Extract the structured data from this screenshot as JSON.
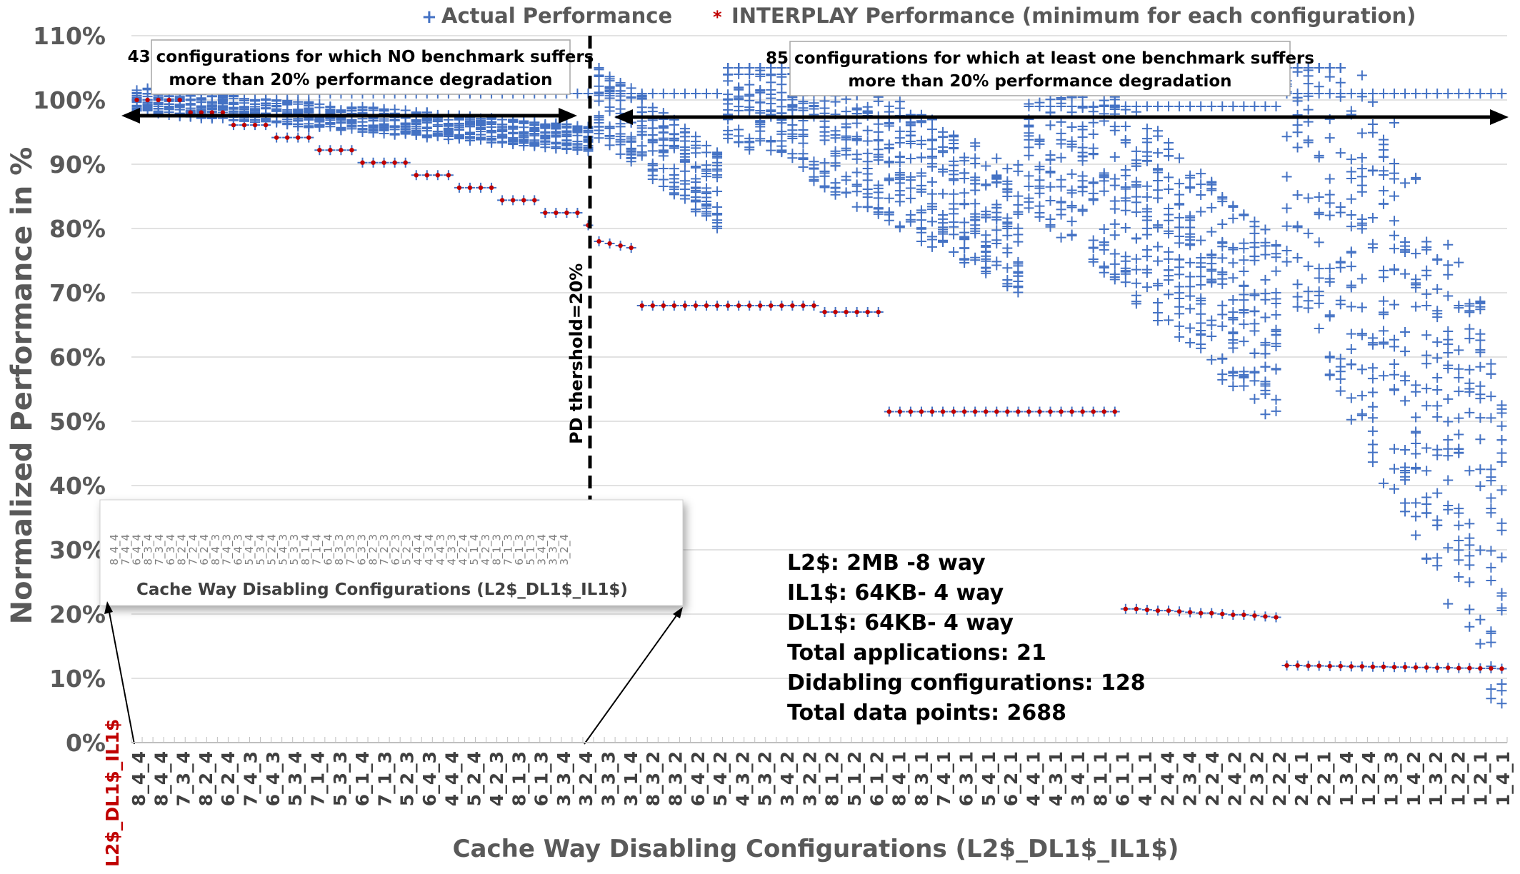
{
  "chart_data": {
    "type": "scatter",
    "xlabel": "Cache  Way Disabling Configurations (L2$_DL1$_IL1$)",
    "ylabel": "Normalized Performance in %",
    "ylim": [
      0,
      110
    ],
    "y_ticks": [
      "0%",
      "10%",
      "20%",
      "30%",
      "40%",
      "50%",
      "60%",
      "70%",
      "80%",
      "90%",
      "100%",
      "110%"
    ],
    "x_header_label": "L2$_DL1$_IL1$",
    "x_tick_labels": [
      "8_4_4",
      "8_4_4",
      "7_3_4",
      "8_2_4",
      "6_2_4",
      "7_4_3",
      "6_4_3",
      "5_3_4",
      "7_1_4",
      "5_3_3",
      "6_1_4",
      "7_1_3",
      "5_2_3",
      "6_4_3",
      "4_4_4",
      "5_2_4",
      "4_2_3",
      "8_1_3",
      "6_1_3",
      "3_3_4",
      "3_2_4",
      "3_3_3",
      "3_1_4",
      "8_3_2",
      "8_3_2",
      "6_4_2",
      "5_4_2",
      "4_3_2",
      "5_3_2",
      "3_4_2",
      "3_2_2",
      "8_1_2",
      "5_1_2",
      "6_1_2",
      "8_4_1",
      "8_3_1",
      "7_4_1",
      "6_3_1",
      "5_4_1",
      "6_2_1",
      "4_4_1",
      "4_3_1",
      "3_4_1",
      "8_1_1",
      "6_1_1",
      "4_1_1",
      "2_4_4",
      "2_3_4",
      "2_2_4",
      "2_4_2",
      "2_3_2",
      "2_2_2",
      "2_4_1",
      "2_2_1",
      "1_3_4",
      "1_2_4",
      "1_3_3",
      "1_4_2",
      "1_3_2",
      "1_2_2",
      "1_2_1",
      "1_4_1"
    ],
    "inset_tick_labels": [
      "8_4_4",
      "7_4_4",
      "6_4_4",
      "8_3_4",
      "7_3_4",
      "6_3_4",
      "8_2_4",
      "7_2_4",
      "6_2_4",
      "8_4_3",
      "7_4_3",
      "6_4_3",
      "5_4_4",
      "5_3_4",
      "5_2_4",
      "5_4_3",
      "5_3_3",
      "8_1_4",
      "7_1_4",
      "6_1_4",
      "8_3_3",
      "7_3_3",
      "6_3_3",
      "8_2_3",
      "7_2_3",
      "6_2_3",
      "5_2_3",
      "4_4_4",
      "4_3_4",
      "4_4_3",
      "4_3_3",
      "4_2_4",
      "5_1_4",
      "4_2_3",
      "8_1_3",
      "7_1_3",
      "6_1_3",
      "5_1_3",
      "3_4_4",
      "3_3_4",
      "3_2_4"
    ],
    "series": [
      {
        "name": "Actual Performance",
        "marker": "+",
        "color": "#4472c4",
        "clusters": [
          {
            "x_from": 0,
            "x_to": 42,
            "y_from": 100,
            "y_to": 94,
            "spread": 4
          },
          {
            "x_from": 43,
            "x_to": 54,
            "y_from": 100,
            "y_to": 86,
            "spread": 12
          },
          {
            "x_from": 55,
            "x_to": 82,
            "y_from": 104,
            "y_to": 80,
            "spread": 20
          },
          {
            "x_from": 83,
            "x_to": 106,
            "y_from": 98,
            "y_to": 64,
            "spread": 30
          },
          {
            "x_from": 107,
            "x_to": 127,
            "y_from": 100,
            "y_to": 33,
            "spread": 60
          }
        ]
      },
      {
        "name": "INTERPLAY Performance (minimum for each configuration)",
        "marker": "*",
        "color": "#c00000",
        "segments": [
          {
            "x_from": 0,
            "x_to": 42,
            "y_from": 100,
            "y_to": 80.5
          },
          {
            "x_from": 43,
            "x_to": 46,
            "y_from": 78,
            "y_to": 77
          },
          {
            "x_from": 47,
            "x_to": 63,
            "y": 68
          },
          {
            "x_from": 64,
            "x_to": 69,
            "y": 67
          },
          {
            "x_from": 70,
            "x_to": 91,
            "y": 51.5
          },
          {
            "x_from": 92,
            "x_to": 106,
            "y_from": 20.8,
            "y_to": 19.5
          },
          {
            "x_from": 107,
            "x_to": 127,
            "y_from": 12,
            "y_to": 11.5
          }
        ]
      }
    ],
    "num_configurations": 128,
    "threshold_config_index": 42,
    "threshold_label": "PD thershold=20%",
    "annotations": {
      "left_line1": "43 configurations for which NO benchmark suffers",
      "left_line2": "more than 20% performance degradation",
      "right_line1": "85 configurations for which at least one benchmark suffers",
      "right_line2": "more than 20% performance degradation"
    },
    "info_lines": [
      "L2$: 2MB -8 way",
      "IL1$: 64KB- 4 way",
      "DL1$: 64KB- 4 way",
      "Total applications: 21",
      "Didabling configurations: 128",
      "Total data points: 2688"
    ],
    "colors": {
      "actual": "#4472c4",
      "interplay": "#c00000",
      "grid": "#d9d9d9",
      "axis_text": "#595959"
    }
  }
}
